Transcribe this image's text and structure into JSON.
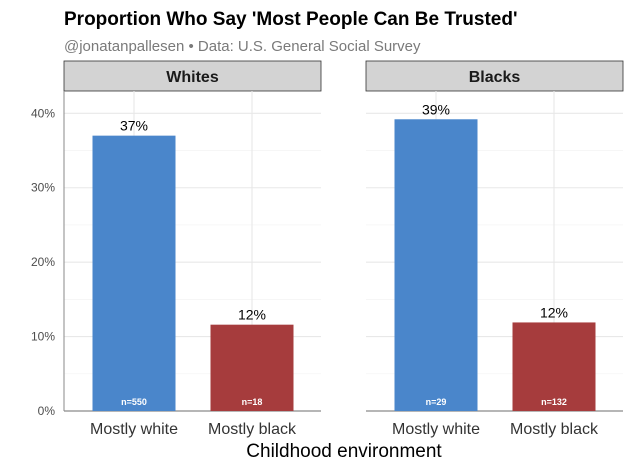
{
  "chart_data": {
    "type": "bar",
    "title": "Proportion Who Say 'Most People Can Be Trusted'",
    "subtitle": "@jonatanpallesen • Data: U.S. General Social Survey",
    "xlabel": "Childhood environment",
    "ylabel": "",
    "ylim": [
      0,
      43
    ],
    "yticks": [
      0,
      10,
      20,
      30,
      40
    ],
    "ytick_labels": [
      "0%",
      "10%",
      "20%",
      "30%",
      "40%"
    ],
    "categories": [
      "Mostly white",
      "Mostly black"
    ],
    "colors": {
      "Mostly white": "#4a86cb",
      "Mostly black": "#a63c3d",
      "strip_bg": "#d3d3d3",
      "grid": "#e8e8e8"
    },
    "panels": [
      {
        "name": "Whites",
        "values": [
          37,
          11.6
        ],
        "value_labels": [
          "37%",
          "12%"
        ],
        "n_labels": [
          "n=550",
          "n=18"
        ]
      },
      {
        "name": "Blacks",
        "values": [
          39.2,
          11.9
        ],
        "value_labels": [
          "39%",
          "12%"
        ],
        "n_labels": [
          "n=29",
          "n=132"
        ]
      }
    ]
  }
}
